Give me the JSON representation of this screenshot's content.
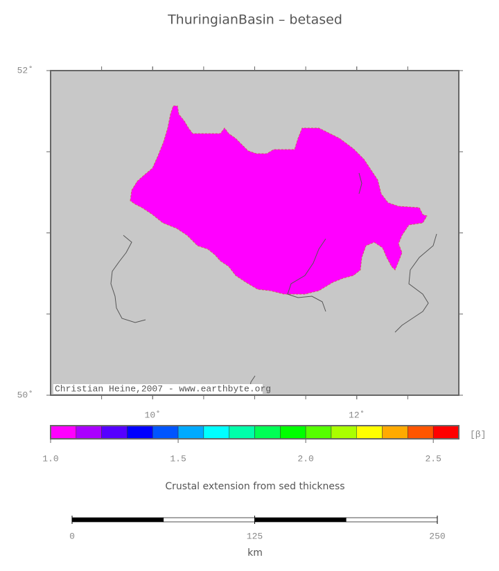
{
  "title": "ThuringianBasin – betased",
  "map": {
    "lonlim": [
      9,
      13
    ],
    "latlim": [
      50,
      52
    ],
    "lon_labels": [
      {
        "value": 10,
        "label": "10˚"
      },
      {
        "value": 12,
        "label": "12˚"
      }
    ],
    "lat_labels": [
      {
        "value": 50,
        "label": "50˚"
      },
      {
        "value": 52,
        "label": "52˚"
      }
    ],
    "lon_ticks": [
      9.5,
      10,
      10.5,
      11,
      11.5,
      12,
      12.5
    ],
    "lat_ticks": [
      50.5,
      51,
      51.5
    ],
    "credit": "Christian Heine,2007 - www.earthbyte.org"
  },
  "colorbar": {
    "lim": [
      1.0,
      2.6
    ],
    "colors": [
      "#ff00ff",
      "#aa00ff",
      "#5500ff",
      "#0000ff",
      "#0055ff",
      "#00aaff",
      "#00ffff",
      "#00ffaa",
      "#00ff55",
      "#00ff00",
      "#55ff00",
      "#aaff00",
      "#ffff00",
      "#ffaa00",
      "#ff5500",
      "#ff0000"
    ],
    "ticks": [
      {
        "value": 1.0,
        "label": "1.0"
      },
      {
        "value": 1.5,
        "label": "1.5"
      },
      {
        "value": 2.0,
        "label": "2.0"
      },
      {
        "value": 2.5,
        "label": "2.5"
      }
    ],
    "unit": "[β]",
    "caption": "Crustal extension from sed thickness"
  },
  "scalebar": {
    "lim": [
      0,
      250
    ],
    "segment": 62.5,
    "ticks": [
      0,
      125,
      250
    ],
    "unit": "km"
  }
}
